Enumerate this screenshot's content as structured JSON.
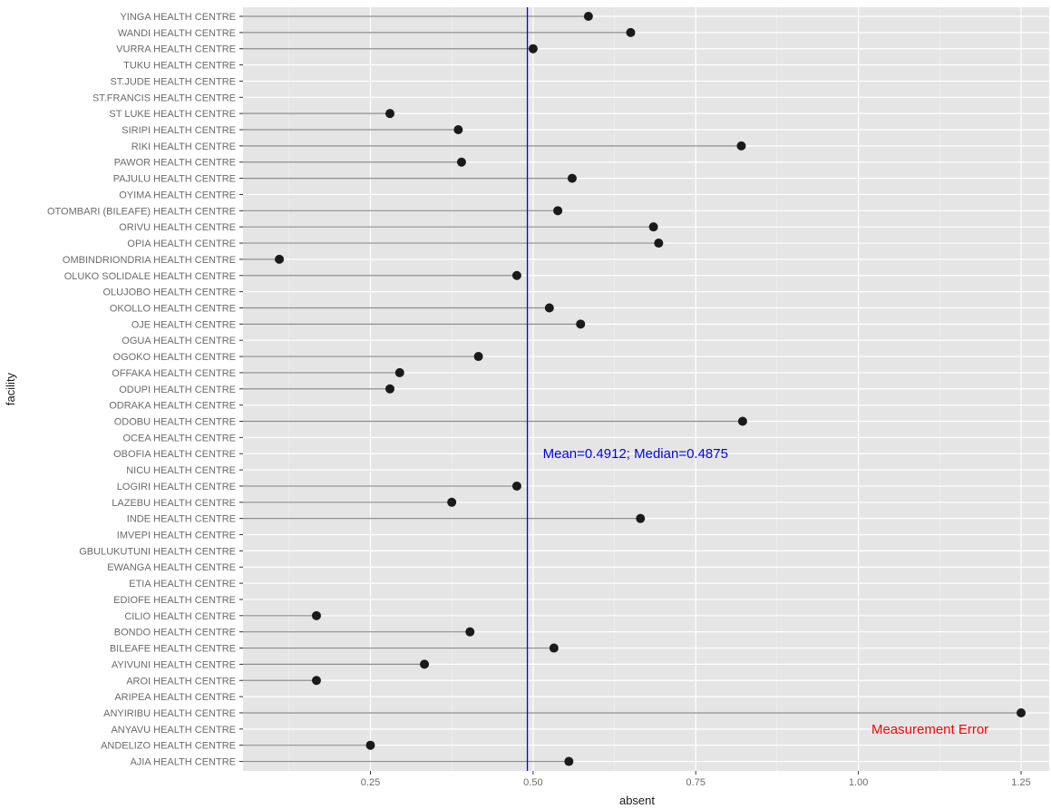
{
  "chart_data": {
    "type": "scatter",
    "style": "lollipop",
    "orientation": "horizontal",
    "xlabel": "absent",
    "ylabel": "facility",
    "xlim": [
      0.06,
      1.3
    ],
    "xticks": [
      0.25,
      0.5,
      0.75,
      1.0,
      1.25
    ],
    "xtick_labels": [
      "0.25",
      "0.50",
      "0.75",
      "1.00",
      "1.25"
    ],
    "grid": true,
    "facilities": [
      {
        "name": "YINGA HEALTH CENTRE",
        "value": 0.585
      },
      {
        "name": "WANDI HEALTH CENTRE",
        "value": 0.65
      },
      {
        "name": "VURRA HEALTH CENTRE",
        "value": 0.5
      },
      {
        "name": "TUKU HEALTH CENTRE",
        "value": null
      },
      {
        "name": "ST.JUDE HEALTH CENTRE",
        "value": null
      },
      {
        "name": "ST.FRANCIS HEALTH CENTRE",
        "value": null
      },
      {
        "name": "ST LUKE HEALTH CENTRE",
        "value": 0.28
      },
      {
        "name": "SIRIPI HEALTH CENTRE",
        "value": 0.385
      },
      {
        "name": "RIKI HEALTH CENTRE",
        "value": 0.82
      },
      {
        "name": "PAWOR HEALTH CENTRE",
        "value": 0.39
      },
      {
        "name": "PAJULU HEALTH CENTRE",
        "value": 0.56
      },
      {
        "name": "OYIMA HEALTH CENTRE",
        "value": null
      },
      {
        "name": "OTOMBARI (BILEAFE) HEALTH CENTRE",
        "value": 0.538
      },
      {
        "name": "ORIVU HEALTH CENTRE",
        "value": 0.685
      },
      {
        "name": "OPIA HEALTH CENTRE",
        "value": 0.693
      },
      {
        "name": "OMBINDRIONDRIA HEALTH CENTRE",
        "value": 0.11
      },
      {
        "name": "OLUKO SOLIDALE HEALTH CENTRE",
        "value": 0.475
      },
      {
        "name": "OLUJOBO HEALTH CENTRE",
        "value": null
      },
      {
        "name": "OKOLLO HEALTH CENTRE",
        "value": 0.525
      },
      {
        "name": "OJE HEALTH CENTRE",
        "value": 0.573
      },
      {
        "name": "OGUA HEALTH CENTRE",
        "value": null
      },
      {
        "name": "OGOKO HEALTH CENTRE",
        "value": 0.416
      },
      {
        "name": "OFFAKA HEALTH CENTRE",
        "value": 0.295
      },
      {
        "name": "ODUPI HEALTH CENTRE",
        "value": 0.28
      },
      {
        "name": "ODRAKA HEALTH CENTRE",
        "value": null
      },
      {
        "name": "ODOBU HEALTH CENTRE",
        "value": 0.822
      },
      {
        "name": "OCEA HEALTH CENTRE",
        "value": null
      },
      {
        "name": "OBOFIA HEALTH CENTRE",
        "value": null
      },
      {
        "name": "NICU HEALTH CENTRE",
        "value": null
      },
      {
        "name": "LOGIRI HEALTH CENTRE",
        "value": 0.475
      },
      {
        "name": "LAZEBU HEALTH CENTRE",
        "value": 0.375
      },
      {
        "name": "INDE HEALTH CENTRE",
        "value": 0.665
      },
      {
        "name": "IMVEPI HEALTH CENTRE",
        "value": null
      },
      {
        "name": "GBULUKUTUNI HEALTH CENTRE",
        "value": null
      },
      {
        "name": "EWANGA HEALTH CENTRE",
        "value": null
      },
      {
        "name": "ETIA HEALTH CENTRE",
        "value": null
      },
      {
        "name": "EDIOFE HEALTH CENTRE",
        "value": null
      },
      {
        "name": "CILIO HEALTH CENTRE",
        "value": 0.167
      },
      {
        "name": "BONDO HEALTH CENTRE",
        "value": 0.403
      },
      {
        "name": "BILEAFE HEALTH CENTRE",
        "value": 0.532
      },
      {
        "name": "AYIVUNI HEALTH CENTRE",
        "value": 0.333
      },
      {
        "name": "AROI HEALTH CENTRE",
        "value": 0.167
      },
      {
        "name": "ARIPEA HEALTH CENTRE",
        "value": null
      },
      {
        "name": "ANYIRIBU HEALTH CENTRE",
        "value": 1.25
      },
      {
        "name": "ANYAVU HEALTH CENTRE",
        "value": null
      },
      {
        "name": "ANDELIZO HEALTH CENTRE",
        "value": 0.25
      },
      {
        "name": "AJIA HEALTH CENTRE",
        "value": 0.555
      }
    ],
    "reference_line": {
      "value": 0.4912,
      "color": "#0000ee"
    },
    "annotations": [
      {
        "text": "Mean=0.4912; Median=0.4875",
        "x": 0.515,
        "facility": "OBOFIA HEALTH CENTRE",
        "color": "#0000ee"
      },
      {
        "text": "Measurement Error",
        "x": 1.02,
        "facility": "ANYAVU HEALTH CENTRE",
        "color": "#ff0000"
      }
    ],
    "colors": {
      "panel": "#e5e5e5",
      "grid": "#ffffff",
      "stem": "#8c8c8c",
      "point": "#1a1a1a",
      "axis_text": "#6b6b6b",
      "title_text": "#1a1a1a"
    }
  }
}
